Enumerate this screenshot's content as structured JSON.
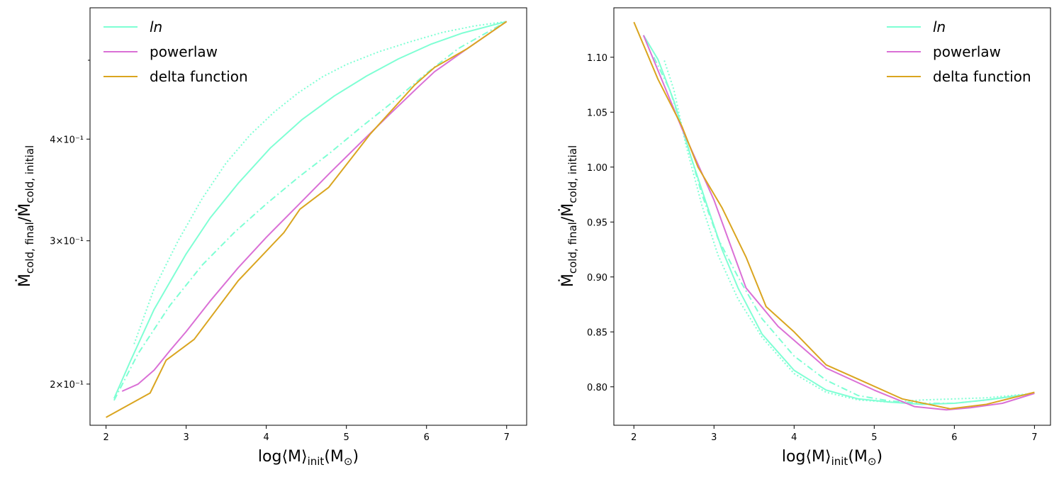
{
  "chart_data": [
    {
      "type": "line",
      "xlabel": "log⟨M⟩init(M⊙)",
      "ylabel": "Ṁcold, final/Ṁcold, initial",
      "xlim": [
        1.8,
        7.25
      ],
      "ylim": [
        0.178,
        0.58
      ],
      "yscale": "log",
      "xticks": [
        "2",
        "3",
        "4",
        "5",
        "6",
        "7"
      ],
      "yticks": [
        {
          "value": 0.2,
          "label": "2×10⁻¹"
        },
        {
          "value": 0.3,
          "label": "3×10⁻¹"
        },
        {
          "value": 0.4,
          "label": "4×10⁻¹"
        }
      ],
      "legend_position": "upper-left",
      "series": [
        {
          "name": "ln",
          "style": "solid",
          "color": "#7fffd4",
          "x": [
            2.1,
            2.3,
            2.6,
            3.0,
            3.3,
            3.65,
            4.05,
            4.45,
            4.85,
            5.25,
            5.65,
            6.05,
            6.45,
            7.0
          ],
          "y": [
            0.192,
            0.213,
            0.247,
            0.289,
            0.32,
            0.353,
            0.39,
            0.423,
            0.452,
            0.478,
            0.502,
            0.523,
            0.54,
            0.558
          ]
        },
        {
          "name": "",
          "style": "dashdot",
          "color": "#7fffd4",
          "x": [
            2.1,
            2.4,
            2.8,
            3.2,
            3.6,
            4.0,
            4.4,
            4.8,
            5.2,
            5.6,
            6.0,
            6.4,
            7.0
          ],
          "y": [
            0.191,
            0.218,
            0.25,
            0.28,
            0.307,
            0.333,
            0.359,
            0.385,
            0.415,
            0.446,
            0.482,
            0.517,
            0.558
          ]
        },
        {
          "name": "",
          "style": "dotted",
          "color": "#7fffd4",
          "x": [
            2.35,
            2.6,
            2.9,
            3.2,
            3.5,
            3.8,
            4.1,
            4.4,
            4.7,
            5.0,
            5.4,
            5.8,
            6.2,
            6.6,
            7.0
          ],
          "y": [
            0.224,
            0.262,
            0.3,
            0.338,
            0.374,
            0.405,
            0.432,
            0.456,
            0.477,
            0.494,
            0.512,
            0.527,
            0.541,
            0.551,
            0.558
          ]
        },
        {
          "name": "powerlaw",
          "style": "solid",
          "color": "#da70d6",
          "x": [
            2.2,
            2.4,
            2.6,
            2.8,
            3.0,
            3.3,
            3.65,
            4.0,
            4.4,
            4.8,
            5.2,
            5.55,
            5.9,
            6.1,
            6.5,
            7.0
          ],
          "y": [
            0.196,
            0.2,
            0.208,
            0.22,
            0.232,
            0.253,
            0.278,
            0.303,
            0.332,
            0.364,
            0.398,
            0.43,
            0.464,
            0.484,
            0.516,
            0.558
          ]
        },
        {
          "name": "delta function",
          "style": "solid",
          "color": "#daa520",
          "x": [
            2.0,
            2.55,
            2.75,
            3.1,
            3.65,
            4.22,
            4.42,
            4.78,
            5.3,
            5.85,
            6.1,
            6.5,
            7.0
          ],
          "y": [
            0.182,
            0.195,
            0.214,
            0.227,
            0.268,
            0.307,
            0.328,
            0.349,
            0.406,
            0.466,
            0.49,
            0.516,
            0.558
          ]
        }
      ]
    },
    {
      "type": "line",
      "xlabel": "log⟨M⟩init(M⊙)",
      "ylabel": "Ṁcold, final/Ṁcold, initial",
      "xlim": [
        1.75,
        7.2
      ],
      "ylim": [
        0.765,
        1.145
      ],
      "yscale": "linear",
      "xticks": [
        "2",
        "3",
        "4",
        "5",
        "6",
        "7"
      ],
      "yticks": [
        "0.80",
        "0.85",
        "0.90",
        "0.95",
        "1.00",
        "1.05",
        "1.10"
      ],
      "legend_position": "upper-right",
      "series": [
        {
          "name": "ln",
          "style": "solid",
          "color": "#7fffd4",
          "x": [
            2.12,
            2.3,
            2.5,
            2.7,
            2.9,
            3.1,
            3.3,
            3.6,
            4.0,
            4.4,
            4.8,
            5.2,
            5.6,
            6.0,
            6.4,
            7.0
          ],
          "y": [
            1.12,
            1.098,
            1.06,
            1.012,
            0.968,
            0.925,
            0.89,
            0.848,
            0.815,
            0.797,
            0.789,
            0.786,
            0.784,
            0.785,
            0.788,
            0.794
          ]
        },
        {
          "name": "",
          "style": "dashdot",
          "color": "#7fffd4",
          "x": [
            2.25,
            2.45,
            2.65,
            2.85,
            3.05,
            3.3,
            3.6,
            4.0,
            4.4,
            4.8,
            5.2,
            5.6,
            6.0,
            6.4,
            7.0
          ],
          "y": [
            1.1,
            1.07,
            1.025,
            0.975,
            0.935,
            0.9,
            0.862,
            0.828,
            0.806,
            0.792,
            0.787,
            0.785,
            0.785,
            0.788,
            0.794
          ]
        },
        {
          "name": "",
          "style": "dotted",
          "color": "#7fffd4",
          "x": [
            2.38,
            2.5,
            2.65,
            2.85,
            3.05,
            3.3,
            3.6,
            4.0,
            4.4,
            4.8,
            5.2,
            5.6,
            6.0,
            6.4,
            7.0
          ],
          "y": [
            1.097,
            1.07,
            1.02,
            0.965,
            0.92,
            0.88,
            0.845,
            0.812,
            0.795,
            0.788,
            0.786,
            0.788,
            0.789,
            0.79,
            0.794
          ]
        },
        {
          "name": "powerlaw",
          "style": "solid",
          "color": "#da70d6",
          "x": [
            2.12,
            2.6,
            3.0,
            3.4,
            3.8,
            4.4,
            5.0,
            5.5,
            5.9,
            6.2,
            6.6,
            7.0
          ],
          "y": [
            1.12,
            1.035,
            0.97,
            0.89,
            0.855,
            0.817,
            0.797,
            0.782,
            0.779,
            0.781,
            0.785,
            0.794
          ]
        },
        {
          "name": "delta function",
          "style": "solid",
          "color": "#daa520",
          "x": [
            2.0,
            2.3,
            2.6,
            2.8,
            3.1,
            3.4,
            3.65,
            4.0,
            4.4,
            4.8,
            5.35,
            5.95,
            6.4,
            7.0
          ],
          "y": [
            1.132,
            1.08,
            1.037,
            1.0,
            0.963,
            0.918,
            0.873,
            0.85,
            0.82,
            0.807,
            0.789,
            0.78,
            0.784,
            0.795
          ]
        }
      ]
    }
  ]
}
